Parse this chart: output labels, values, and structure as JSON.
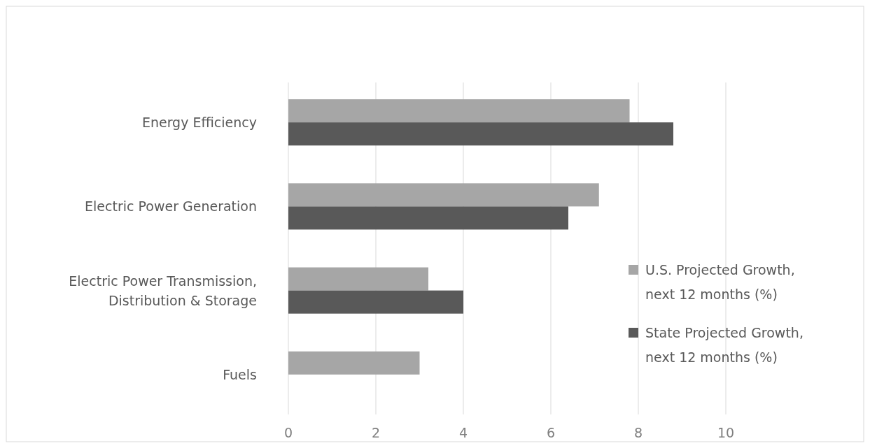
{
  "chart_data": {
    "type": "bar",
    "orientation": "horizontal",
    "categories": [
      "Energy Efficiency",
      "Electric Power Generation",
      "Electric Power Transmission,\nDistribution & Storage",
      "Fuels"
    ],
    "series": [
      {
        "name": "U.S. Projected Growth, next 12 months (%)",
        "color": "#a6a6a6",
        "values": [
          7.8,
          7.1,
          3.2,
          3.0
        ]
      },
      {
        "name": "State Projected Growth, next 12 months (%)",
        "color": "#595959",
        "values": [
          8.8,
          6.4,
          4.0,
          null
        ]
      }
    ],
    "xlim": [
      0,
      10
    ],
    "xticks": [
      0,
      2,
      4,
      6,
      8,
      10
    ],
    "grid": "x",
    "legend": "right"
  }
}
